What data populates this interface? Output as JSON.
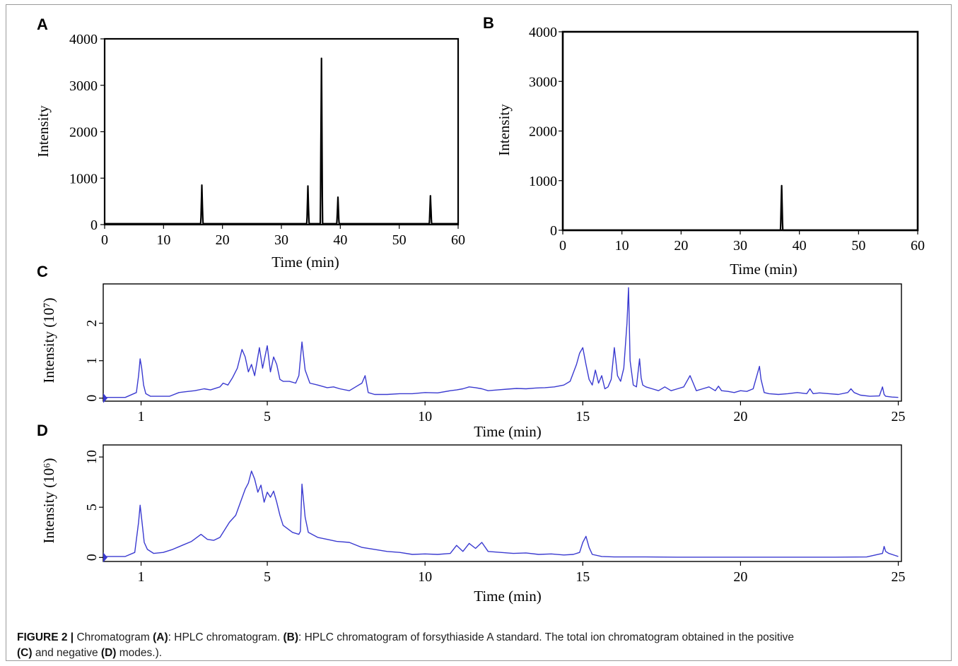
{
  "caption": {
    "figure_label": "FIGURE 2 |",
    "part1": " Chromatogram ",
    "ref_a": "(A)",
    "part2": ": HPLC chromatogram. ",
    "ref_b": "(B)",
    "part3": ": HPLC chromatogram of forsythiaside A standard. The total ion chromatogram obtained in the positive",
    "ref_c": "(C)",
    "part4": " and negative ",
    "ref_d": "(D)",
    "part5": " modes.)."
  },
  "chart_data": [
    {
      "panel": "A",
      "type": "line",
      "xlabel": "Time (min)",
      "ylabel": "Intensity",
      "xlim": [
        0,
        60
      ],
      "ylim": [
        0,
        4000
      ],
      "xticks": [
        0,
        10,
        20,
        30,
        40,
        50,
        60
      ],
      "yticks": [
        0,
        1000,
        2000,
        3000,
        4000
      ],
      "color": "#000000",
      "baseline": 20,
      "peaks": [
        {
          "x": 16.5,
          "y": 850
        },
        {
          "x": 34.5,
          "y": 830
        },
        {
          "x": 36.8,
          "y": 3580
        },
        {
          "x": 39.6,
          "y": 590
        },
        {
          "x": 55.3,
          "y": 620
        }
      ]
    },
    {
      "panel": "B",
      "type": "line",
      "xlabel": "Time (min)",
      "ylabel": "Intensity",
      "xlim": [
        0,
        60
      ],
      "ylim": [
        0,
        4000
      ],
      "xticks": [
        0,
        10,
        20,
        30,
        40,
        50,
        60
      ],
      "yticks": [
        0,
        1000,
        2000,
        3000,
        4000
      ],
      "color": "#000000",
      "baseline": 0,
      "peaks": [
        {
          "x": 37.0,
          "y": 900
        }
      ]
    },
    {
      "panel": "C",
      "type": "line",
      "xlabel": "Time (min)",
      "ylabel": "Intensity (10⁷)",
      "xlim": [
        -0.2,
        25.1
      ],
      "ylim": [
        -0.08,
        3.05
      ],
      "xticks": [
        1,
        5,
        10,
        15,
        20,
        25
      ],
      "yticks": [
        0,
        1,
        2
      ],
      "color": "#3a3ad0",
      "x": [
        -0.2,
        0.5,
        0.85,
        0.92,
        0.97,
        1.02,
        1.08,
        1.15,
        1.3,
        1.6,
        1.9,
        2.2,
        2.4,
        2.7,
        3.0,
        3.2,
        3.5,
        3.6,
        3.75,
        3.9,
        4.05,
        4.2,
        4.3,
        4.4,
        4.5,
        4.6,
        4.75,
        4.85,
        5.0,
        5.1,
        5.2,
        5.3,
        5.4,
        5.5,
        5.7,
        5.9,
        6.0,
        6.1,
        6.2,
        6.35,
        6.6,
        6.9,
        7.1,
        7.3,
        7.6,
        7.8,
        8.0,
        8.1,
        8.2,
        8.4,
        8.8,
        9.2,
        9.6,
        10.0,
        10.4,
        10.8,
        11.0,
        11.2,
        11.4,
        11.6,
        11.8,
        12.0,
        12.3,
        12.6,
        12.9,
        13.2,
        13.5,
        13.8,
        14.1,
        14.4,
        14.6,
        14.8,
        14.9,
        15.0,
        15.1,
        15.2,
        15.3,
        15.4,
        15.5,
        15.6,
        15.7,
        15.8,
        15.9,
        16.0,
        16.1,
        16.2,
        16.3,
        16.4,
        16.45,
        16.5,
        16.6,
        16.7,
        16.8,
        16.85,
        16.9,
        17.0,
        17.2,
        17.4,
        17.6,
        17.8,
        18.0,
        18.2,
        18.4,
        18.5,
        18.6,
        18.8,
        19.0,
        19.2,
        19.3,
        19.4,
        19.6,
        19.8,
        20.0,
        20.2,
        20.4,
        20.6,
        20.65,
        20.75,
        20.9,
        21.2,
        21.5,
        21.8,
        22.1,
        22.2,
        22.3,
        22.5,
        22.8,
        23.1,
        23.4,
        23.5,
        23.6,
        23.8,
        24.1,
        24.4,
        24.5,
        24.55,
        24.6,
        24.8,
        25.0
      ],
      "y": [
        0.02,
        0.02,
        0.15,
        0.6,
        1.05,
        0.8,
        0.35,
        0.12,
        0.05,
        0.05,
        0.05,
        0.15,
        0.17,
        0.2,
        0.25,
        0.22,
        0.3,
        0.4,
        0.35,
        0.55,
        0.8,
        1.3,
        1.1,
        0.7,
        0.9,
        0.6,
        1.35,
        0.8,
        1.4,
        0.7,
        1.1,
        0.9,
        0.5,
        0.45,
        0.45,
        0.4,
        0.6,
        1.5,
        0.75,
        0.4,
        0.35,
        0.28,
        0.3,
        0.25,
        0.2,
        0.3,
        0.4,
        0.6,
        0.15,
        0.1,
        0.1,
        0.12,
        0.12,
        0.15,
        0.14,
        0.2,
        0.22,
        0.25,
        0.3,
        0.28,
        0.25,
        0.2,
        0.22,
        0.24,
        0.26,
        0.25,
        0.27,
        0.28,
        0.3,
        0.35,
        0.45,
        0.9,
        1.2,
        1.35,
        0.9,
        0.5,
        0.35,
        0.75,
        0.4,
        0.6,
        0.25,
        0.3,
        0.5,
        1.35,
        0.6,
        0.45,
        0.8,
        2.0,
        2.95,
        1.0,
        0.35,
        0.3,
        1.05,
        0.55,
        0.35,
        0.3,
        0.25,
        0.2,
        0.3,
        0.2,
        0.25,
        0.3,
        0.6,
        0.4,
        0.2,
        0.25,
        0.3,
        0.2,
        0.32,
        0.2,
        0.18,
        0.15,
        0.2,
        0.18,
        0.25,
        0.85,
        0.5,
        0.15,
        0.12,
        0.1,
        0.12,
        0.15,
        0.12,
        0.25,
        0.12,
        0.14,
        0.12,
        0.1,
        0.15,
        0.25,
        0.15,
        0.08,
        0.05,
        0.06,
        0.3,
        0.1,
        0.05,
        0.03,
        0.02
      ]
    },
    {
      "panel": "D",
      "type": "line",
      "xlabel": "Time (min)",
      "ylabel": "Intensity (10⁶)",
      "xlim": [
        -0.2,
        25.1
      ],
      "ylim": [
        -0.4,
        11.2
      ],
      "xticks": [
        1,
        5,
        10,
        15,
        20,
        25
      ],
      "yticks": [
        0,
        5,
        10
      ],
      "color": "#3a3ad0",
      "x": [
        -0.2,
        0.5,
        0.8,
        0.92,
        0.97,
        1.03,
        1.1,
        1.2,
        1.4,
        1.7,
        2.0,
        2.3,
        2.6,
        2.9,
        3.1,
        3.3,
        3.5,
        3.8,
        4.0,
        4.15,
        4.3,
        4.4,
        4.5,
        4.6,
        4.7,
        4.8,
        4.9,
        5.0,
        5.1,
        5.2,
        5.3,
        5.4,
        5.5,
        5.8,
        6.0,
        6.05,
        6.1,
        6.2,
        6.3,
        6.6,
        6.9,
        7.2,
        7.6,
        8.0,
        8.4,
        8.8,
        9.2,
        9.6,
        10.0,
        10.4,
        10.8,
        11.0,
        11.2,
        11.4,
        11.6,
        11.8,
        12.0,
        12.4,
        12.8,
        13.2,
        13.6,
        14.0,
        14.4,
        14.7,
        14.9,
        15.0,
        15.1,
        15.2,
        15.3,
        15.6,
        16.0,
        17.0,
        18.0,
        19.0,
        20.0,
        21.0,
        22.0,
        23.0,
        24.0,
        24.5,
        24.55,
        24.6,
        24.7,
        24.9,
        25.0
      ],
      "y": [
        0.1,
        0.1,
        0.5,
        3.5,
        5.2,
        3.5,
        1.5,
        0.8,
        0.4,
        0.5,
        0.8,
        1.2,
        1.6,
        2.3,
        1.8,
        1.7,
        2.0,
        3.5,
        4.2,
        5.5,
        6.8,
        7.4,
        8.6,
        7.8,
        6.5,
        7.2,
        5.5,
        6.5,
        6.0,
        6.6,
        5.5,
        4.2,
        3.2,
        2.5,
        2.3,
        2.6,
        7.3,
        4.0,
        2.5,
        2.0,
        1.8,
        1.6,
        1.5,
        1.0,
        0.8,
        0.6,
        0.5,
        0.3,
        0.35,
        0.3,
        0.4,
        1.2,
        0.6,
        1.4,
        0.9,
        1.5,
        0.6,
        0.5,
        0.4,
        0.45,
        0.3,
        0.35,
        0.25,
        0.3,
        0.5,
        1.5,
        2.1,
        1.0,
        0.3,
        0.1,
        0.05,
        0.05,
        0.03,
        0.03,
        0.03,
        0.03,
        0.03,
        0.03,
        0.05,
        0.4,
        1.1,
        0.6,
        0.4,
        0.2,
        0.1
      ]
    }
  ]
}
